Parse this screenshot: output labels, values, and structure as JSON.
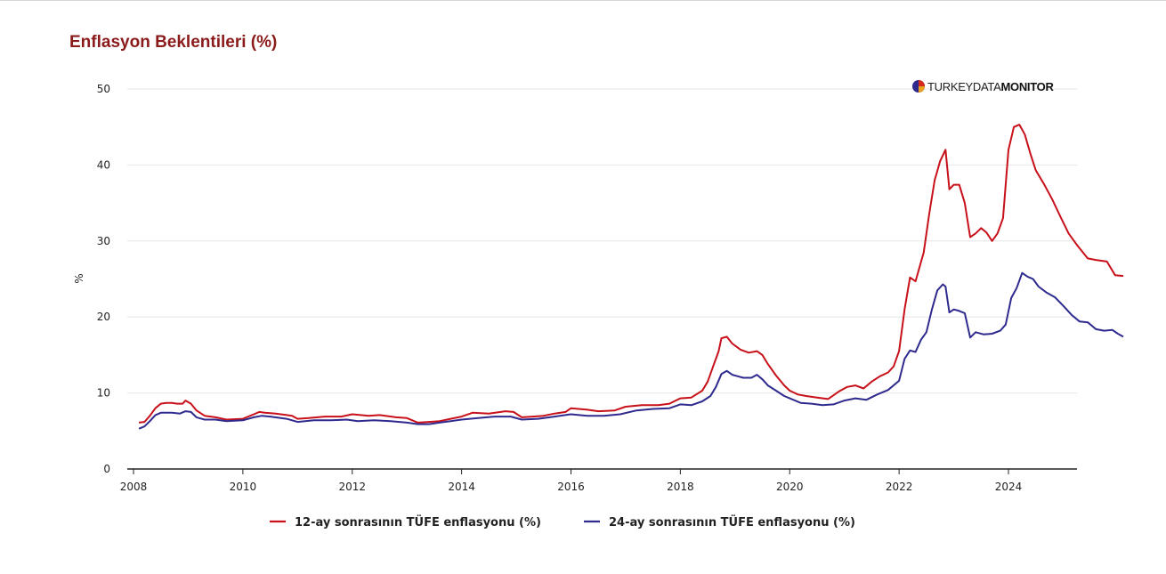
{
  "brand": {
    "part1": "TURKEYDATA",
    "part2": "MONITOR"
  },
  "chart_data": {
    "type": "line",
    "title": "Enflasyon Beklentileri (%)",
    "xlabel": "",
    "ylabel": "%",
    "xlim": [
      2008,
      2025.3
    ],
    "ylim": [
      0,
      50
    ],
    "xticks": [
      "2008",
      "2010",
      "2012",
      "2014",
      "2016",
      "2018",
      "2020",
      "2022",
      "2024"
    ],
    "yticks": [
      "0",
      "10",
      "20",
      "30",
      "40",
      "50"
    ],
    "grid": true,
    "legend_position": "bottom",
    "series": [
      {
        "name": "12-ay sonrasının TÜFE enflasyonu (%)",
        "color": "#c8101a",
        "points": [
          [
            2008.1,
            6.1
          ],
          [
            2008.2,
            6.2
          ],
          [
            2008.3,
            7.0
          ],
          [
            2008.4,
            8.0
          ],
          [
            2008.5,
            8.6
          ],
          [
            2008.6,
            8.7
          ],
          [
            2008.7,
            8.7
          ],
          [
            2008.8,
            8.6
          ],
          [
            2008.9,
            8.6
          ],
          [
            2008.95,
            9.0
          ],
          [
            2009.05,
            8.6
          ],
          [
            2009.15,
            7.7
          ],
          [
            2009.3,
            7.0
          ],
          [
            2009.5,
            6.8
          ],
          [
            2009.7,
            6.5
          ],
          [
            2010.0,
            6.6
          ],
          [
            2010.2,
            7.2
          ],
          [
            2010.3,
            7.5
          ],
          [
            2010.4,
            7.4
          ],
          [
            2010.6,
            7.3
          ],
          [
            2010.8,
            7.1
          ],
          [
            2010.9,
            7.0
          ],
          [
            2011.0,
            6.6
          ],
          [
            2011.2,
            6.7
          ],
          [
            2011.5,
            6.9
          ],
          [
            2011.8,
            6.9
          ],
          [
            2012.0,
            7.2
          ],
          [
            2012.3,
            7.0
          ],
          [
            2012.5,
            7.1
          ],
          [
            2012.8,
            6.8
          ],
          [
            2013.0,
            6.7
          ],
          [
            2013.2,
            6.1
          ],
          [
            2013.4,
            6.2
          ],
          [
            2013.6,
            6.3
          ],
          [
            2013.8,
            6.6
          ],
          [
            2014.0,
            6.9
          ],
          [
            2014.2,
            7.4
          ],
          [
            2014.5,
            7.3
          ],
          [
            2014.8,
            7.6
          ],
          [
            2014.95,
            7.5
          ],
          [
            2015.1,
            6.8
          ],
          [
            2015.3,
            6.9
          ],
          [
            2015.5,
            7.0
          ],
          [
            2015.7,
            7.3
          ],
          [
            2015.9,
            7.5
          ],
          [
            2016.0,
            8.0
          ],
          [
            2016.3,
            7.8
          ],
          [
            2016.5,
            7.6
          ],
          [
            2016.8,
            7.7
          ],
          [
            2017.0,
            8.2
          ],
          [
            2017.3,
            8.4
          ],
          [
            2017.6,
            8.4
          ],
          [
            2017.8,
            8.6
          ],
          [
            2018.0,
            9.3
          ],
          [
            2018.2,
            9.4
          ],
          [
            2018.4,
            10.3
          ],
          [
            2018.5,
            11.5
          ],
          [
            2018.6,
            13.5
          ],
          [
            2018.7,
            15.5
          ],
          [
            2018.75,
            17.2
          ],
          [
            2018.85,
            17.4
          ],
          [
            2018.95,
            16.5
          ],
          [
            2019.1,
            15.7
          ],
          [
            2019.25,
            15.3
          ],
          [
            2019.4,
            15.5
          ],
          [
            2019.5,
            15.0
          ],
          [
            2019.6,
            13.8
          ],
          [
            2019.75,
            12.3
          ],
          [
            2019.9,
            11.0
          ],
          [
            2020.0,
            10.3
          ],
          [
            2020.15,
            9.8
          ],
          [
            2020.3,
            9.6
          ],
          [
            2020.5,
            9.4
          ],
          [
            2020.7,
            9.2
          ],
          [
            2020.9,
            10.2
          ],
          [
            2021.05,
            10.8
          ],
          [
            2021.2,
            11.0
          ],
          [
            2021.35,
            10.6
          ],
          [
            2021.5,
            11.5
          ],
          [
            2021.65,
            12.2
          ],
          [
            2021.8,
            12.7
          ],
          [
            2021.9,
            13.5
          ],
          [
            2022.0,
            15.5
          ],
          [
            2022.1,
            21.0
          ],
          [
            2022.2,
            25.2
          ],
          [
            2022.3,
            24.7
          ],
          [
            2022.45,
            28.5
          ],
          [
            2022.55,
            33.5
          ],
          [
            2022.65,
            38.0
          ],
          [
            2022.75,
            40.5
          ],
          [
            2022.85,
            42.0
          ],
          [
            2022.92,
            36.8
          ],
          [
            2023.0,
            37.4
          ],
          [
            2023.1,
            37.4
          ],
          [
            2023.2,
            35.0
          ],
          [
            2023.3,
            30.5
          ],
          [
            2023.4,
            31.0
          ],
          [
            2023.5,
            31.7
          ],
          [
            2023.6,
            31.1
          ],
          [
            2023.7,
            30.0
          ],
          [
            2023.8,
            31.0
          ],
          [
            2023.9,
            33.0
          ],
          [
            2024.0,
            42.0
          ],
          [
            2024.1,
            45.0
          ],
          [
            2024.2,
            45.3
          ],
          [
            2024.3,
            44.0
          ],
          [
            2024.4,
            41.5
          ],
          [
            2024.5,
            39.3
          ],
          [
            2024.65,
            37.5
          ],
          [
            2024.8,
            35.5
          ],
          [
            2024.95,
            33.2
          ],
          [
            2025.1,
            31.0
          ],
          [
            2025.25,
            29.5
          ],
          [
            2025.45,
            27.7
          ],
          [
            2025.6,
            27.5
          ],
          [
            2025.8,
            27.3
          ],
          [
            2025.95,
            25.5
          ],
          [
            2026.1,
            25.4
          ]
        ]
      },
      {
        "name": "24-ay sonrasının TÜFE enflasyonu (%)",
        "color": "#2e2a8e",
        "points": [
          [
            2008.1,
            5.3
          ],
          [
            2008.2,
            5.6
          ],
          [
            2008.3,
            6.3
          ],
          [
            2008.4,
            7.1
          ],
          [
            2008.5,
            7.4
          ],
          [
            2008.7,
            7.4
          ],
          [
            2008.85,
            7.3
          ],
          [
            2008.95,
            7.6
          ],
          [
            2009.05,
            7.5
          ],
          [
            2009.15,
            6.8
          ],
          [
            2009.3,
            6.5
          ],
          [
            2009.5,
            6.5
          ],
          [
            2009.7,
            6.3
          ],
          [
            2010.0,
            6.4
          ],
          [
            2010.2,
            6.8
          ],
          [
            2010.35,
            7.0
          ],
          [
            2010.5,
            6.9
          ],
          [
            2010.8,
            6.6
          ],
          [
            2011.0,
            6.2
          ],
          [
            2011.3,
            6.4
          ],
          [
            2011.6,
            6.4
          ],
          [
            2011.9,
            6.5
          ],
          [
            2012.1,
            6.3
          ],
          [
            2012.4,
            6.4
          ],
          [
            2012.7,
            6.3
          ],
          [
            2013.0,
            6.1
          ],
          [
            2013.2,
            5.9
          ],
          [
            2013.4,
            5.9
          ],
          [
            2013.6,
            6.1
          ],
          [
            2013.8,
            6.3
          ],
          [
            2014.0,
            6.5
          ],
          [
            2014.3,
            6.7
          ],
          [
            2014.6,
            6.9
          ],
          [
            2014.9,
            6.9
          ],
          [
            2015.1,
            6.5
          ],
          [
            2015.4,
            6.6
          ],
          [
            2015.7,
            6.9
          ],
          [
            2016.0,
            7.2
          ],
          [
            2016.3,
            7.0
          ],
          [
            2016.6,
            7.0
          ],
          [
            2016.9,
            7.2
          ],
          [
            2017.2,
            7.7
          ],
          [
            2017.5,
            7.9
          ],
          [
            2017.8,
            8.0
          ],
          [
            2018.0,
            8.5
          ],
          [
            2018.2,
            8.4
          ],
          [
            2018.4,
            8.9
          ],
          [
            2018.55,
            9.6
          ],
          [
            2018.65,
            10.8
          ],
          [
            2018.75,
            12.5
          ],
          [
            2018.85,
            12.9
          ],
          [
            2018.95,
            12.4
          ],
          [
            2019.05,
            12.2
          ],
          [
            2019.15,
            12.0
          ],
          [
            2019.3,
            12.0
          ],
          [
            2019.4,
            12.4
          ],
          [
            2019.5,
            11.8
          ],
          [
            2019.6,
            11.0
          ],
          [
            2019.75,
            10.3
          ],
          [
            2019.9,
            9.6
          ],
          [
            2020.0,
            9.3
          ],
          [
            2020.2,
            8.7
          ],
          [
            2020.4,
            8.6
          ],
          [
            2020.6,
            8.4
          ],
          [
            2020.8,
            8.5
          ],
          [
            2021.0,
            9.0
          ],
          [
            2021.2,
            9.3
          ],
          [
            2021.4,
            9.1
          ],
          [
            2021.6,
            9.8
          ],
          [
            2021.8,
            10.4
          ],
          [
            2022.0,
            11.6
          ],
          [
            2022.1,
            14.5
          ],
          [
            2022.2,
            15.6
          ],
          [
            2022.3,
            15.4
          ],
          [
            2022.4,
            17.0
          ],
          [
            2022.5,
            18.0
          ],
          [
            2022.6,
            21.0
          ],
          [
            2022.7,
            23.5
          ],
          [
            2022.8,
            24.3
          ],
          [
            2022.85,
            24.0
          ],
          [
            2022.92,
            20.6
          ],
          [
            2023.0,
            21.0
          ],
          [
            2023.1,
            20.8
          ],
          [
            2023.2,
            20.5
          ],
          [
            2023.3,
            17.3
          ],
          [
            2023.4,
            18.0
          ],
          [
            2023.55,
            17.7
          ],
          [
            2023.7,
            17.8
          ],
          [
            2023.85,
            18.2
          ],
          [
            2023.95,
            19.0
          ],
          [
            2024.05,
            22.5
          ],
          [
            2024.15,
            23.8
          ],
          [
            2024.25,
            25.8
          ],
          [
            2024.35,
            25.3
          ],
          [
            2024.45,
            25.0
          ],
          [
            2024.55,
            24.0
          ],
          [
            2024.7,
            23.2
          ],
          [
            2024.85,
            22.6
          ],
          [
            2025.0,
            21.5
          ],
          [
            2025.15,
            20.3
          ],
          [
            2025.3,
            19.4
          ],
          [
            2025.45,
            19.3
          ],
          [
            2025.6,
            18.4
          ],
          [
            2025.75,
            18.2
          ],
          [
            2025.9,
            18.3
          ],
          [
            2026.0,
            17.8
          ],
          [
            2026.1,
            17.4
          ]
        ]
      }
    ]
  }
}
